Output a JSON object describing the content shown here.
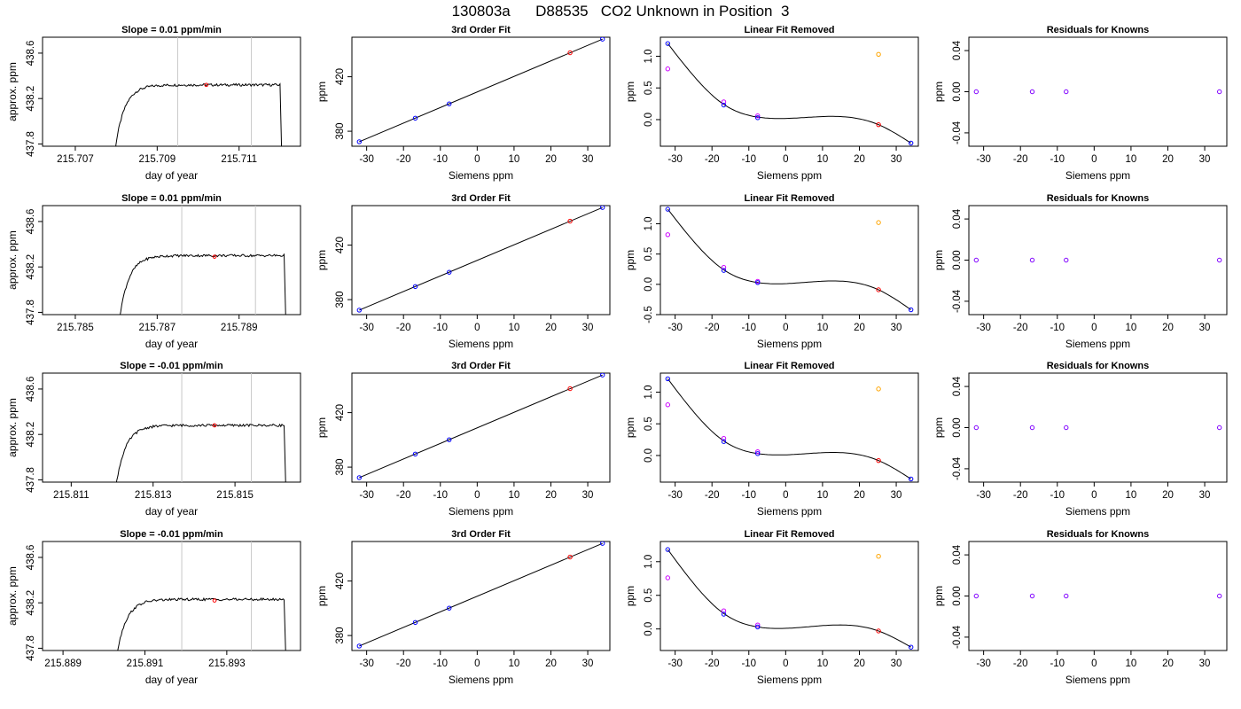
{
  "page_title": "130803a      D88535   CO2 Unknown in Position  3",
  "chart_data": [
    {
      "type": "line",
      "title": "Slope =  0.01  ppm/min",
      "xlabel": "day of year",
      "ylabel": "approx. ppm",
      "xlim": [
        215.7062,
        215.7125
      ],
      "ylim": [
        437.78,
        438.74
      ],
      "xticks": [
        "215.707",
        "215.709",
        "215.711"
      ],
      "xtick_values": [
        215.707,
        215.709,
        215.711
      ],
      "yticks": [
        "437.8",
        "438.2",
        "438.6"
      ],
      "ytick_values": [
        437.8,
        438.2,
        438.6
      ],
      "trace_start": 215.7078,
      "trace_end": 215.712,
      "plateau": 438.32,
      "vlines": [
        215.7095,
        215.7113
      ],
      "marker": {
        "x": 215.7102,
        "y": 438.32,
        "color": "#ff0000"
      }
    },
    {
      "type": "scatter",
      "title": "3rd Order Fit",
      "xlabel": "Siemens ppm",
      "ylabel": "ppm",
      "xlim": [
        -34,
        36
      ],
      "ylim": [
        369,
        449
      ],
      "xticks": [
        "-30",
        "-20",
        "-10",
        "0",
        "10",
        "20",
        "30"
      ],
      "xtick_values": [
        -30,
        -20,
        -10,
        0,
        10,
        20,
        30
      ],
      "yticks": [
        "380",
        "420"
      ],
      "ytick_values": [
        380,
        420
      ],
      "line": {
        "x": [
          -32,
          34
        ],
        "y": [
          372.3,
          447.6
        ]
      },
      "points": [
        {
          "x": -32,
          "y": 372.3,
          "color": "#0000ff"
        },
        {
          "x": -16.8,
          "y": 389.6,
          "color": "#0000ff"
        },
        {
          "x": -7.6,
          "y": 400.1,
          "color": "#0000ff"
        },
        {
          "x": 25.2,
          "y": 437.6,
          "color": "#ff0000"
        },
        {
          "x": 34,
          "y": 447.6,
          "color": "#0000ff"
        }
      ]
    },
    {
      "type": "scatter",
      "title": "Linear Fit Removed",
      "xlabel": "Siemens ppm",
      "ylabel": "ppm",
      "xlim": [
        -34,
        36
      ],
      "ylim": [
        -0.42,
        1.3
      ],
      "xticks": [
        "-30",
        "-20",
        "-10",
        "0",
        "10",
        "20",
        "30"
      ],
      "xtick_values": [
        -30,
        -20,
        -10,
        0,
        10,
        20,
        30
      ],
      "yticks": [
        "0.0",
        "0.5",
        "1.0"
      ],
      "ytick_values": [
        0,
        0.5,
        1.0
      ],
      "curve": [
        [
          -32,
          1.2
        ],
        [
          -16.8,
          0.24
        ],
        [
          -7.6,
          0.04
        ],
        [
          25.2,
          -0.08
        ],
        [
          34,
          -0.37
        ]
      ],
      "points": [
        {
          "x": -32,
          "y": 1.2,
          "color": "#0000ff"
        },
        {
          "x": -32,
          "y": 0.8,
          "color": "#cc00ff"
        },
        {
          "x": -16.8,
          "y": 0.28,
          "color": "#cc00ff"
        },
        {
          "x": -16.8,
          "y": 0.23,
          "color": "#0000ff"
        },
        {
          "x": -7.6,
          "y": 0.06,
          "color": "#cc00ff"
        },
        {
          "x": -7.6,
          "y": 0.03,
          "color": "#0000ff"
        },
        {
          "x": 25.2,
          "y": 1.03,
          "color": "#ffa500"
        },
        {
          "x": 25.2,
          "y": -0.08,
          "color": "#ff0000"
        },
        {
          "x": 34,
          "y": -0.37,
          "color": "#0000ff"
        }
      ]
    },
    {
      "type": "scatter",
      "title": "Residuals for Knowns",
      "xlabel": "Siemens ppm",
      "ylabel": "ppm",
      "xlim": [
        -34,
        36
      ],
      "ylim": [
        -0.053,
        0.053
      ],
      "xticks": [
        "-30",
        "-20",
        "-10",
        "0",
        "10",
        "20",
        "30"
      ],
      "xtick_values": [
        -30,
        -20,
        -10,
        0,
        10,
        20,
        30
      ],
      "yticks": [
        "-0.04",
        "0.00",
        "0.04"
      ],
      "ytick_values": [
        -0.04,
        0,
        0.04
      ],
      "points": [
        {
          "x": -32,
          "y": 0,
          "color": "#8000ff"
        },
        {
          "x": -16.8,
          "y": 0,
          "color": "#8000ff"
        },
        {
          "x": -7.6,
          "y": 0,
          "color": "#8000ff"
        },
        {
          "x": 34,
          "y": 0,
          "color": "#8000ff"
        }
      ]
    },
    {
      "type": "line",
      "title": "Slope =  0.01  ppm/min",
      "xlabel": "day of year",
      "ylabel": "approx. ppm",
      "xlim": [
        215.7842,
        215.7905
      ],
      "ylim": [
        437.78,
        438.74
      ],
      "xticks": [
        "215.785",
        "215.787",
        "215.789"
      ],
      "xtick_values": [
        215.785,
        215.787,
        215.789
      ],
      "yticks": [
        "437.8",
        "438.2",
        "438.6"
      ],
      "ytick_values": [
        437.8,
        438.2,
        438.6
      ],
      "trace_start": 215.7859,
      "trace_end": 215.7901,
      "plateau": 438.3,
      "vlines": [
        215.7876,
        215.7894
      ],
      "marker": {
        "x": 215.7884,
        "y": 438.29,
        "color": "#ff0000"
      }
    },
    {
      "type": "scatter",
      "title": "3rd Order Fit",
      "xlabel": "Siemens ppm",
      "ylabel": "ppm",
      "xlim": [
        -34,
        36
      ],
      "ylim": [
        369,
        449
      ],
      "xticks": [
        "-30",
        "-20",
        "-10",
        "0",
        "10",
        "20",
        "30"
      ],
      "xtick_values": [
        -30,
        -20,
        -10,
        0,
        10,
        20,
        30
      ],
      "yticks": [
        "380",
        "420"
      ],
      "ytick_values": [
        380,
        420
      ],
      "line": {
        "x": [
          -32,
          34
        ],
        "y": [
          372.3,
          447.6
        ]
      },
      "points": [
        {
          "x": -32,
          "y": 372.3,
          "color": "#0000ff"
        },
        {
          "x": -16.8,
          "y": 389.6,
          "color": "#0000ff"
        },
        {
          "x": -7.6,
          "y": 400.1,
          "color": "#0000ff"
        },
        {
          "x": 25.2,
          "y": 437.6,
          "color": "#ff0000"
        },
        {
          "x": 34,
          "y": 447.6,
          "color": "#0000ff"
        }
      ]
    },
    {
      "type": "scatter",
      "title": "Linear Fit Removed",
      "xlabel": "Siemens ppm",
      "ylabel": "ppm",
      "xlim": [
        -34,
        36
      ],
      "ylim": [
        -0.5,
        1.3
      ],
      "xticks": [
        "-30",
        "-20",
        "-10",
        "0",
        "10",
        "20",
        "30"
      ],
      "xtick_values": [
        -30,
        -20,
        -10,
        0,
        10,
        20,
        30
      ],
      "yticks": [
        "-0.5",
        "0.0",
        "0.5",
        "1.0"
      ],
      "ytick_values": [
        -0.5,
        0,
        0.5,
        1.0
      ],
      "curve": [
        [
          -32,
          1.24
        ],
        [
          -16.8,
          0.24
        ],
        [
          -7.6,
          0.03
        ],
        [
          25.2,
          -0.09
        ],
        [
          34,
          -0.42
        ]
      ],
      "points": [
        {
          "x": -32,
          "y": 1.24,
          "color": "#0000ff"
        },
        {
          "x": -32,
          "y": 0.82,
          "color": "#cc00ff"
        },
        {
          "x": -16.8,
          "y": 0.28,
          "color": "#cc00ff"
        },
        {
          "x": -16.8,
          "y": 0.23,
          "color": "#0000ff"
        },
        {
          "x": -7.6,
          "y": 0.05,
          "color": "#cc00ff"
        },
        {
          "x": -7.6,
          "y": 0.03,
          "color": "#0000ff"
        },
        {
          "x": 25.2,
          "y": 1.02,
          "color": "#ffa500"
        },
        {
          "x": 25.2,
          "y": -0.09,
          "color": "#ff0000"
        },
        {
          "x": 34,
          "y": -0.42,
          "color": "#0000ff"
        }
      ]
    },
    {
      "type": "scatter",
      "title": "Residuals for Knowns",
      "xlabel": "Siemens ppm",
      "ylabel": "ppm",
      "xlim": [
        -34,
        36
      ],
      "ylim": [
        -0.053,
        0.053
      ],
      "xticks": [
        "-30",
        "-20",
        "-10",
        "0",
        "10",
        "20",
        "30"
      ],
      "xtick_values": [
        -30,
        -20,
        -10,
        0,
        10,
        20,
        30
      ],
      "yticks": [
        "-0.04",
        "0.00",
        "0.04"
      ],
      "ytick_values": [
        -0.04,
        0,
        0.04
      ],
      "points": [
        {
          "x": -32,
          "y": 0,
          "color": "#8000ff"
        },
        {
          "x": -16.8,
          "y": 0,
          "color": "#8000ff"
        },
        {
          "x": -7.6,
          "y": 0,
          "color": "#8000ff"
        },
        {
          "x": 34,
          "y": 0,
          "color": "#8000ff"
        }
      ]
    },
    {
      "type": "line",
      "title": "Slope =  -0.01  ppm/min",
      "xlabel": "day of year",
      "ylabel": "approx. ppm",
      "xlim": [
        215.8103,
        215.8166
      ],
      "ylim": [
        437.78,
        438.74
      ],
      "xticks": [
        "215.811",
        "215.813",
        "215.815"
      ],
      "xtick_values": [
        215.811,
        215.813,
        215.815
      ],
      "yticks": [
        "437.8",
        "438.2",
        "438.6"
      ],
      "ytick_values": [
        437.8,
        438.2,
        438.6
      ],
      "trace_start": 215.8119,
      "trace_end": 215.8162,
      "plateau": 438.28,
      "vlines": [
        215.8137,
        215.8154
      ],
      "marker": {
        "x": 215.8145,
        "y": 438.28,
        "color": "#ff0000"
      }
    },
    {
      "type": "scatter",
      "title": "3rd Order Fit",
      "xlabel": "Siemens ppm",
      "ylabel": "ppm",
      "xlim": [
        -34,
        36
      ],
      "ylim": [
        369,
        449
      ],
      "xticks": [
        "-30",
        "-20",
        "-10",
        "0",
        "10",
        "20",
        "30"
      ],
      "xtick_values": [
        -30,
        -20,
        -10,
        0,
        10,
        20,
        30
      ],
      "yticks": [
        "380",
        "420"
      ],
      "ytick_values": [
        380,
        420
      ],
      "line": {
        "x": [
          -32,
          34
        ],
        "y": [
          372.3,
          447.6
        ]
      },
      "points": [
        {
          "x": -32,
          "y": 372.3,
          "color": "#0000ff"
        },
        {
          "x": -16.8,
          "y": 389.6,
          "color": "#0000ff"
        },
        {
          "x": -7.6,
          "y": 400.1,
          "color": "#0000ff"
        },
        {
          "x": 25.2,
          "y": 437.6,
          "color": "#ff0000"
        },
        {
          "x": 34,
          "y": 447.6,
          "color": "#0000ff"
        }
      ]
    },
    {
      "type": "scatter",
      "title": "Linear Fit Removed",
      "xlabel": "Siemens ppm",
      "ylabel": "ppm",
      "xlim": [
        -34,
        36
      ],
      "ylim": [
        -0.42,
        1.3
      ],
      "xticks": [
        "-30",
        "-20",
        "-10",
        "0",
        "10",
        "20",
        "30"
      ],
      "xtick_values": [
        -30,
        -20,
        -10,
        0,
        10,
        20,
        30
      ],
      "yticks": [
        "0.0",
        "0.5",
        "1.0"
      ],
      "ytick_values": [
        0,
        0.5,
        1.0
      ],
      "curve": [
        [
          -32,
          1.21
        ],
        [
          -16.8,
          0.23
        ],
        [
          -7.6,
          0.03
        ],
        [
          25.2,
          -0.08
        ],
        [
          34,
          -0.37
        ]
      ],
      "points": [
        {
          "x": -32,
          "y": 1.21,
          "color": "#0000ff"
        },
        {
          "x": -32,
          "y": 0.8,
          "color": "#cc00ff"
        },
        {
          "x": -16.8,
          "y": 0.27,
          "color": "#cc00ff"
        },
        {
          "x": -16.8,
          "y": 0.22,
          "color": "#0000ff"
        },
        {
          "x": -7.6,
          "y": 0.06,
          "color": "#cc00ff"
        },
        {
          "x": -7.6,
          "y": 0.03,
          "color": "#0000ff"
        },
        {
          "x": 25.2,
          "y": 1.05,
          "color": "#ffa500"
        },
        {
          "x": 25.2,
          "y": -0.08,
          "color": "#ff0000"
        },
        {
          "x": 34,
          "y": -0.37,
          "color": "#0000ff"
        }
      ]
    },
    {
      "type": "scatter",
      "title": "Residuals for Knowns",
      "xlabel": "Siemens ppm",
      "ylabel": "ppm",
      "xlim": [
        -34,
        36
      ],
      "ylim": [
        -0.053,
        0.053
      ],
      "xticks": [
        "-30",
        "-20",
        "-10",
        "0",
        "10",
        "20",
        "30"
      ],
      "xtick_values": [
        -30,
        -20,
        -10,
        0,
        10,
        20,
        30
      ],
      "yticks": [
        "-0.04",
        "0.00",
        "0.04"
      ],
      "ytick_values": [
        -0.04,
        0,
        0.04
      ],
      "points": [
        {
          "x": -32,
          "y": 0,
          "color": "#8000ff"
        },
        {
          "x": -16.8,
          "y": 0,
          "color": "#8000ff"
        },
        {
          "x": -7.6,
          "y": 0,
          "color": "#8000ff"
        },
        {
          "x": 34,
          "y": 0,
          "color": "#8000ff"
        }
      ]
    },
    {
      "type": "line",
      "title": "Slope =  -0.01  ppm/min",
      "xlabel": "day of year",
      "ylabel": "approx. ppm",
      "xlim": [
        215.8885,
        215.8948
      ],
      "ylim": [
        437.78,
        438.74
      ],
      "xticks": [
        "215.889",
        "215.891",
        "215.893"
      ],
      "xtick_values": [
        215.889,
        215.891,
        215.893
      ],
      "yticks": [
        "437.8",
        "438.2",
        "438.6"
      ],
      "ytick_values": [
        437.8,
        438.2,
        438.6
      ],
      "trace_start": 215.8901,
      "trace_end": 215.8944,
      "plateau": 438.23,
      "vlines": [
        215.8919,
        215.8936
      ],
      "marker": {
        "x": 215.8927,
        "y": 438.22,
        "color": "#ff0000"
      }
    },
    {
      "type": "scatter",
      "title": "3rd Order Fit",
      "xlabel": "Siemens ppm",
      "ylabel": "ppm",
      "xlim": [
        -34,
        36
      ],
      "ylim": [
        369,
        449
      ],
      "xticks": [
        "-30",
        "-20",
        "-10",
        "0",
        "10",
        "20",
        "30"
      ],
      "xtick_values": [
        -30,
        -20,
        -10,
        0,
        10,
        20,
        30
      ],
      "yticks": [
        "380",
        "420"
      ],
      "ytick_values": [
        380,
        420
      ],
      "line": {
        "x": [
          -32,
          34
        ],
        "y": [
          372.3,
          447.6
        ]
      },
      "points": [
        {
          "x": -32,
          "y": 372.3,
          "color": "#0000ff"
        },
        {
          "x": -16.8,
          "y": 389.6,
          "color": "#0000ff"
        },
        {
          "x": -7.6,
          "y": 400.1,
          "color": "#0000ff"
        },
        {
          "x": 25.2,
          "y": 437.6,
          "color": "#ff0000"
        },
        {
          "x": 34,
          "y": 447.6,
          "color": "#0000ff"
        }
      ]
    },
    {
      "type": "scatter",
      "title": "Linear Fit Removed",
      "xlabel": "Siemens ppm",
      "ylabel": "ppm",
      "xlim": [
        -34,
        36
      ],
      "ylim": [
        -0.32,
        1.3
      ],
      "xticks": [
        "-30",
        "-20",
        "-10",
        "0",
        "10",
        "20",
        "30"
      ],
      "xtick_values": [
        -30,
        -20,
        -10,
        0,
        10,
        20,
        30
      ],
      "yticks": [
        "0.0",
        "0.5",
        "1.0"
      ],
      "ytick_values": [
        0,
        0.5,
        1.0
      ],
      "curve": [
        [
          -32,
          1.18
        ],
        [
          -16.8,
          0.23
        ],
        [
          -7.6,
          0.03
        ],
        [
          25.2,
          -0.03
        ],
        [
          34,
          -0.27
        ]
      ],
      "points": [
        {
          "x": -32,
          "y": 1.18,
          "color": "#0000ff"
        },
        {
          "x": -32,
          "y": 0.76,
          "color": "#cc00ff"
        },
        {
          "x": -16.8,
          "y": 0.27,
          "color": "#cc00ff"
        },
        {
          "x": -16.8,
          "y": 0.22,
          "color": "#0000ff"
        },
        {
          "x": -7.6,
          "y": 0.06,
          "color": "#cc00ff"
        },
        {
          "x": -7.6,
          "y": 0.03,
          "color": "#0000ff"
        },
        {
          "x": 25.2,
          "y": 1.08,
          "color": "#ffa500"
        },
        {
          "x": 25.2,
          "y": -0.03,
          "color": "#ff0000"
        },
        {
          "x": 34,
          "y": -0.27,
          "color": "#0000ff"
        }
      ]
    },
    {
      "type": "scatter",
      "title": "Residuals for Knowns",
      "xlabel": "Siemens ppm",
      "ylabel": "ppm",
      "xlim": [
        -34,
        36
      ],
      "ylim": [
        -0.053,
        0.053
      ],
      "xticks": [
        "-30",
        "-20",
        "-10",
        "0",
        "10",
        "20",
        "30"
      ],
      "xtick_values": [
        -30,
        -20,
        -10,
        0,
        10,
        20,
        30
      ],
      "yticks": [
        "-0.04",
        "0.00",
        "0.04"
      ],
      "ytick_values": [
        -0.04,
        0,
        0.04
      ],
      "points": [
        {
          "x": -32,
          "y": 0,
          "color": "#8000ff"
        },
        {
          "x": -16.8,
          "y": 0,
          "color": "#8000ff"
        },
        {
          "x": -7.6,
          "y": 0,
          "color": "#8000ff"
        },
        {
          "x": 34,
          "y": 0,
          "color": "#8000ff"
        }
      ]
    }
  ]
}
